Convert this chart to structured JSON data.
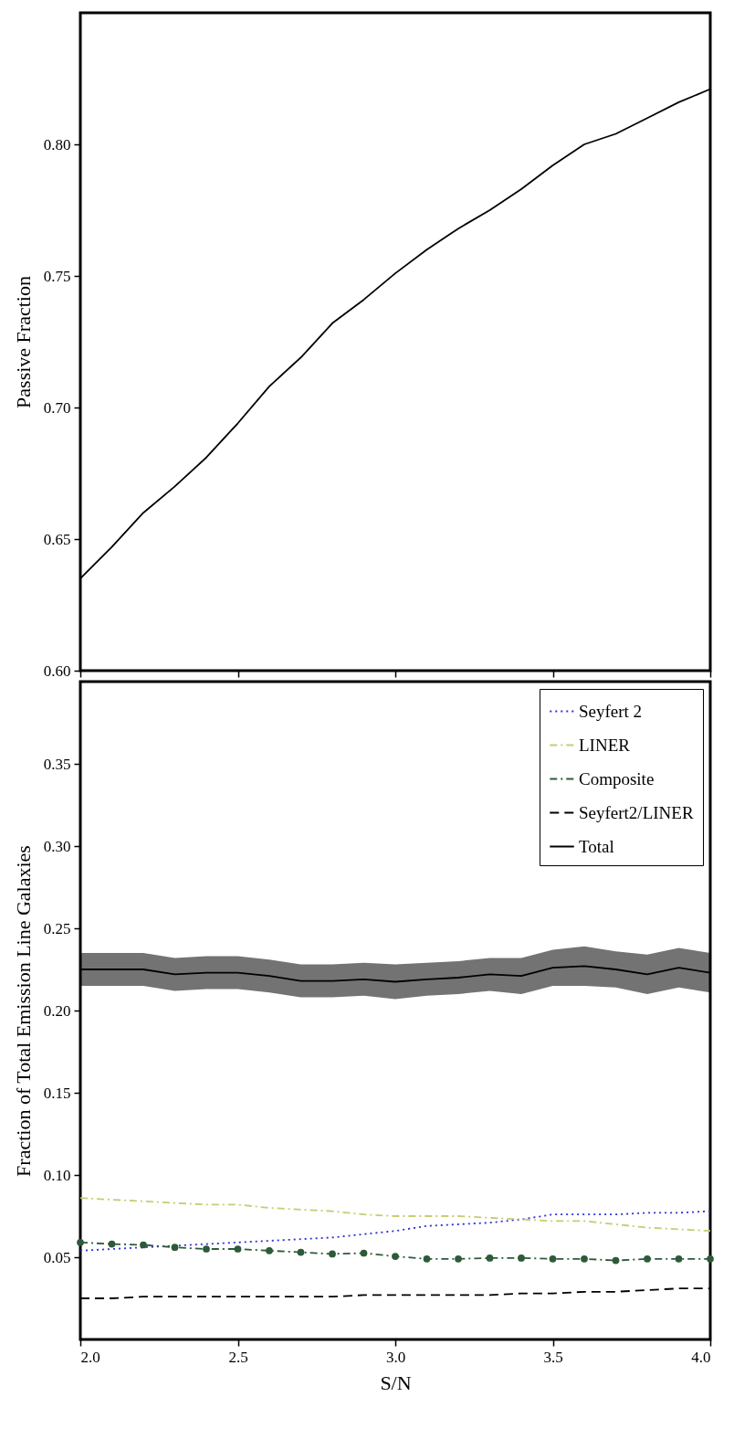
{
  "chart_data": [
    {
      "type": "line",
      "ylabel": "Passive Fraction",
      "tick_labels": "y",
      "grid": false,
      "legend": false,
      "x": [
        2.0,
        2.1,
        2.2,
        2.3,
        2.4,
        2.5,
        2.6,
        2.7,
        2.8,
        2.9,
        3.0,
        3.1,
        3.2,
        3.3,
        3.4,
        3.5,
        3.6,
        3.7,
        3.8,
        3.9,
        4.0
      ],
      "series": [
        {
          "color": "#000000",
          "line_style": "solid",
          "values": [
            0.635,
            0.647,
            0.66,
            0.67,
            0.681,
            0.694,
            0.708,
            0.719,
            0.732,
            0.741,
            0.751,
            0.76,
            0.768,
            0.775,
            0.783,
            0.792,
            0.8,
            0.804,
            0.81,
            0.816,
            0.821
          ]
        }
      ],
      "xlim": [
        2.0,
        4.0
      ],
      "xticks": [
        {
          "value": 2.0,
          "label": null
        },
        {
          "value": 2.5,
          "label": null
        },
        {
          "value": 3.0,
          "label": null
        },
        {
          "value": 3.5,
          "label": null
        },
        {
          "value": 4.0,
          "label": null
        }
      ],
      "ylim": [
        0.6,
        0.85
      ],
      "yticks": [
        {
          "value": 0.6,
          "label": "0.60"
        },
        {
          "value": 0.65,
          "label": "0.65"
        },
        {
          "value": 0.7,
          "label": "0.70"
        },
        {
          "value": 0.75,
          "label": "0.75"
        },
        {
          "value": 0.8,
          "label": "0.80"
        }
      ]
    },
    {
      "type": "line",
      "xlabel": "S/N",
      "ylabel": "Fraction of Total Emission Line Galaxies",
      "grid": false,
      "legend": "top right",
      "x": [
        2.0,
        2.1,
        2.2,
        2.3,
        2.4,
        2.5,
        2.6,
        2.7,
        2.8,
        2.9,
        3.0,
        3.1,
        3.2,
        3.3,
        3.4,
        3.5,
        3.6,
        3.7,
        3.8,
        3.9,
        4.0
      ],
      "series": [
        {
          "name": "Seyfert 2",
          "color": "#3030d0",
          "line_style": "dotted",
          "marker": "none",
          "values": [
            0.054,
            0.055,
            0.056,
            0.057,
            0.058,
            0.059,
            0.06,
            0.061,
            0.062,
            0.064,
            0.066,
            0.069,
            0.07,
            0.071,
            0.073,
            0.076,
            0.076,
            0.076,
            0.077,
            0.077,
            0.078
          ]
        },
        {
          "name": "LINER",
          "color": "#c8cc70",
          "line_style": "dashdot",
          "marker": "none",
          "values": [
            0.086,
            0.085,
            0.084,
            0.083,
            0.082,
            0.082,
            0.08,
            0.079,
            0.078,
            0.076,
            0.075,
            0.075,
            0.075,
            0.074,
            0.073,
            0.072,
            0.072,
            0.07,
            0.068,
            0.067,
            0.066
          ]
        },
        {
          "name": "Composite",
          "color": "#2e5a3a",
          "line_style": "dashdot",
          "marker": "circle",
          "values": [
            0.059,
            0.058,
            0.0575,
            0.056,
            0.055,
            0.055,
            0.054,
            0.053,
            0.052,
            0.0525,
            0.0505,
            0.049,
            0.049,
            0.0495,
            0.0495,
            0.049,
            0.049,
            0.048,
            0.049,
            0.049,
            0.049
          ]
        },
        {
          "name": "Seyfert2/LINER",
          "color": "#000000",
          "line_style": "dashed",
          "marker": "none",
          "values": [
            0.025,
            0.025,
            0.026,
            0.026,
            0.026,
            0.026,
            0.026,
            0.026,
            0.026,
            0.027,
            0.027,
            0.027,
            0.027,
            0.027,
            0.028,
            0.028,
            0.029,
            0.029,
            0.03,
            0.031,
            0.031
          ]
        },
        {
          "name": "Total",
          "color": "#000000",
          "line_style": "solid",
          "marker": "none",
          "values": [
            0.225,
            0.225,
            0.225,
            0.222,
            0.223,
            0.223,
            0.221,
            0.218,
            0.218,
            0.219,
            0.2175,
            0.219,
            0.22,
            0.222,
            0.221,
            0.226,
            0.227,
            0.225,
            0.222,
            0.226,
            0.223
          ],
          "lower": [
            0.215,
            0.215,
            0.215,
            0.212,
            0.213,
            0.213,
            0.211,
            0.208,
            0.208,
            0.209,
            0.207,
            0.209,
            0.21,
            0.212,
            0.21,
            0.215,
            0.215,
            0.214,
            0.21,
            0.214,
            0.211
          ],
          "upper": [
            0.235,
            0.235,
            0.235,
            0.232,
            0.233,
            0.233,
            0.231,
            0.228,
            0.228,
            0.229,
            0.228,
            0.229,
            0.23,
            0.232,
            0.232,
            0.237,
            0.239,
            0.236,
            0.234,
            0.238,
            0.235
          ]
        }
      ],
      "xlim": [
        2.0,
        4.0
      ],
      "xticks": [
        {
          "value": 2.0,
          "label": "2.0"
        },
        {
          "value": 2.5,
          "label": "2.5"
        },
        {
          "value": 3.0,
          "label": "3.0"
        },
        {
          "value": 3.5,
          "label": "3.5"
        },
        {
          "value": 4.0,
          "label": "4.0"
        }
      ],
      "ylim": [
        0.0,
        0.4
      ],
      "yticks": [
        {
          "value": 0.05,
          "label": "0.05"
        },
        {
          "value": 0.1,
          "label": "0.10"
        },
        {
          "value": 0.15,
          "label": "0.15"
        },
        {
          "value": 0.2,
          "label": "0.20"
        },
        {
          "value": 0.25,
          "label": "0.25"
        },
        {
          "value": 0.3,
          "label": "0.30"
        },
        {
          "value": 0.35,
          "label": "0.35"
        }
      ]
    }
  ]
}
